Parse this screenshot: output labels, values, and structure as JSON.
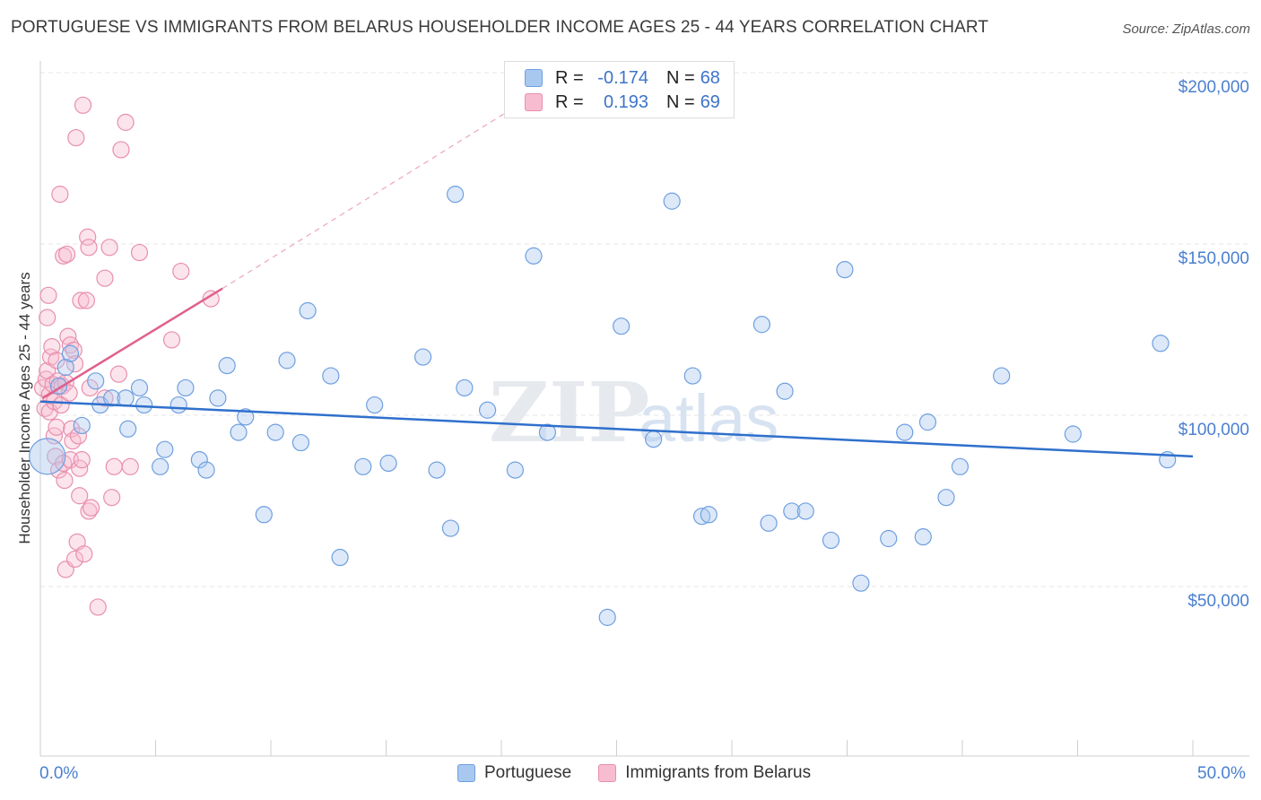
{
  "title": "PORTUGUESE VS IMMIGRANTS FROM BELARUS HOUSEHOLDER INCOME AGES 25 - 44 YEARS CORRELATION CHART",
  "source": "Source: ZipAtlas.com",
  "watermark": {
    "zip": "ZIP",
    "atlas": "atlas"
  },
  "legend": {
    "portuguese": {
      "r_label": "R =",
      "r_value": "-0.174",
      "n_label": "N =",
      "n_value": "68"
    },
    "belarus": {
      "r_label": "R =",
      "r_value": "0.193",
      "n_label": "N =",
      "n_value": "69"
    }
  },
  "colors": {
    "blue_fill": "#a9c8f0",
    "blue_stroke": "#6f9fe0",
    "blue_line": "#2f70cc",
    "pink_fill": "#f7bcd0",
    "pink_stroke": "#e88fae",
    "pink_line": "#e0608c",
    "grid": "#e6e6e6",
    "tick_label": "#4a7fd0"
  },
  "chart_data": {
    "type": "scatter",
    "title": "PORTUGUESE VS IMMIGRANTS FROM BELARUS HOUSEHOLDER INCOME AGES 25 - 44 YEARS CORRELATION CHART",
    "xlabel": "",
    "ylabel": "Householder Income Ages 25 - 44 years",
    "xlim": [
      0,
      50
    ],
    "ylim": [
      0,
      210000
    ],
    "x_tick_labels": {
      "min": "0.0%",
      "max": "50.0%"
    },
    "y_ticks": [
      {
        "value": 50000,
        "label": "$50,000"
      },
      {
        "value": 100000,
        "label": "$100,000"
      },
      {
        "value": 150000,
        "label": "$150,000"
      },
      {
        "value": 200000,
        "label": "$200,000"
      }
    ],
    "series": [
      {
        "name": "Portuguese",
        "color": "blue",
        "trend": {
          "x": [
            0,
            50
          ],
          "y": [
            104000,
            88000
          ]
        },
        "points": [
          [
            0.3,
            88000,
            "big"
          ],
          [
            0.8,
            108500
          ],
          [
            1.1,
            114000
          ],
          [
            1.3,
            118000
          ],
          [
            1.8,
            97000
          ],
          [
            2.4,
            110000
          ],
          [
            2.6,
            103000
          ],
          [
            3.1,
            105000
          ],
          [
            3.7,
            105000
          ],
          [
            3.8,
            96000
          ],
          [
            4.3,
            108000
          ],
          [
            4.5,
            103000
          ],
          [
            5.2,
            85000
          ],
          [
            5.4,
            90000
          ],
          [
            6.0,
            103000
          ],
          [
            6.3,
            108000
          ],
          [
            6.9,
            87000
          ],
          [
            7.2,
            84000
          ],
          [
            7.7,
            105000
          ],
          [
            8.1,
            114500
          ],
          [
            8.6,
            95000
          ],
          [
            8.9,
            99500
          ],
          [
            9.7,
            71000
          ],
          [
            10.2,
            95000
          ],
          [
            10.7,
            116000
          ],
          [
            11.3,
            92000
          ],
          [
            11.6,
            130500
          ],
          [
            12.6,
            111500
          ],
          [
            13.0,
            58500
          ],
          [
            14.0,
            85000
          ],
          [
            14.5,
            103000
          ],
          [
            15.1,
            86000
          ],
          [
            16.6,
            117000
          ],
          [
            17.2,
            84000
          ],
          [
            17.8,
            67000
          ],
          [
            18.0,
            164500
          ],
          [
            18.4,
            108000
          ],
          [
            19.4,
            101500
          ],
          [
            20.6,
            84000
          ],
          [
            21.4,
            146500
          ],
          [
            22.0,
            95000
          ],
          [
            24.6,
            41000
          ],
          [
            25.2,
            126000
          ],
          [
            26.6,
            93000
          ],
          [
            27.4,
            162500
          ],
          [
            28.3,
            111500
          ],
          [
            28.7,
            70500
          ],
          [
            29.0,
            71000
          ],
          [
            31.3,
            126500
          ],
          [
            31.6,
            68500
          ],
          [
            32.3,
            107000
          ],
          [
            32.6,
            72000
          ],
          [
            33.2,
            72000
          ],
          [
            34.3,
            63500
          ],
          [
            34.9,
            142500
          ],
          [
            35.6,
            51000
          ],
          [
            36.8,
            64000
          ],
          [
            37.5,
            95000
          ],
          [
            38.3,
            64500
          ],
          [
            38.5,
            98000
          ],
          [
            39.3,
            76000
          ],
          [
            39.9,
            85000
          ],
          [
            41.7,
            111500
          ],
          [
            44.8,
            94500
          ],
          [
            48.6,
            121000
          ],
          [
            48.9,
            87000
          ]
        ]
      },
      {
        "name": "Immigrants from Belarus",
        "color": "pink",
        "trend": {
          "x": [
            0.1,
            7.9
          ],
          "y": [
            105000,
            137000
          ]
        },
        "trend_ext": {
          "x": [
            7.9,
            20.6
          ],
          "y": [
            137000,
            190000
          ]
        },
        "points": [
          [
            0.1,
            108000
          ],
          [
            0.2,
            102000
          ],
          [
            0.25,
            110500
          ],
          [
            0.3,
            113000
          ],
          [
            0.3,
            128500
          ],
          [
            0.35,
            135000
          ],
          [
            0.4,
            101000
          ],
          [
            0.4,
            106000
          ],
          [
            0.45,
            117000
          ],
          [
            0.5,
            120000
          ],
          [
            0.55,
            109000
          ],
          [
            0.6,
            104000
          ],
          [
            0.6,
            94000
          ],
          [
            0.65,
            88000
          ],
          [
            0.7,
            96500
          ],
          [
            0.7,
            116000
          ],
          [
            0.75,
            110000
          ],
          [
            0.8,
            84000
          ],
          [
            0.85,
            164500
          ],
          [
            0.9,
            103000
          ],
          [
            0.95,
            108500
          ],
          [
            1.0,
            86000
          ],
          [
            1.0,
            146500
          ],
          [
            1.05,
            81000
          ],
          [
            1.1,
            109500
          ],
          [
            1.1,
            55000
          ],
          [
            1.15,
            147000
          ],
          [
            1.2,
            123000
          ],
          [
            1.25,
            106500
          ],
          [
            1.3,
            87000
          ],
          [
            1.3,
            120500
          ],
          [
            1.35,
            96000
          ],
          [
            1.4,
            92500
          ],
          [
            1.45,
            119000
          ],
          [
            1.5,
            115000
          ],
          [
            1.5,
            58000
          ],
          [
            1.55,
            181000
          ],
          [
            1.6,
            63000
          ],
          [
            1.65,
            94000
          ],
          [
            1.7,
            84500
          ],
          [
            1.7,
            76500
          ],
          [
            1.75,
            133500
          ],
          [
            1.8,
            87000
          ],
          [
            1.85,
            190500
          ],
          [
            1.9,
            59500
          ],
          [
            2.0,
            133500
          ],
          [
            2.05,
            152000
          ],
          [
            2.1,
            149000
          ],
          [
            2.1,
            72000
          ],
          [
            2.15,
            108000
          ],
          [
            2.2,
            73000
          ],
          [
            2.5,
            44000
          ],
          [
            2.8,
            140000
          ],
          [
            2.8,
            105000
          ],
          [
            3.0,
            149000
          ],
          [
            3.1,
            76000
          ],
          [
            3.2,
            85000
          ],
          [
            3.4,
            112000
          ],
          [
            3.5,
            177500
          ],
          [
            3.7,
            185500
          ],
          [
            3.9,
            85000
          ],
          [
            4.3,
            147500
          ],
          [
            5.7,
            122000
          ],
          [
            6.1,
            142000
          ],
          [
            7.4,
            134000
          ]
        ]
      }
    ]
  }
}
